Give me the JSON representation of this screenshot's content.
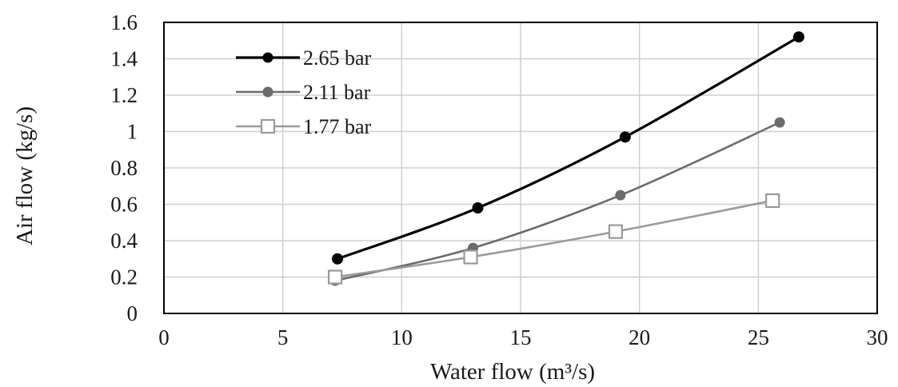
{
  "chart_data": {
    "type": "line",
    "xlabel": "Water flow (m³/s)",
    "ylabel": "Air flow (kg/s)",
    "xlim": [
      0,
      30
    ],
    "ylim": [
      0,
      1.6
    ],
    "x_ticks": [
      0,
      5,
      10,
      15,
      20,
      25,
      30
    ],
    "y_ticks": [
      0,
      0.2,
      0.4,
      0.6,
      0.8,
      1,
      1.2,
      1.4,
      1.6
    ],
    "x_tick_labels": [
      "0",
      "5",
      "10",
      "15",
      "20",
      "25",
      "30"
    ],
    "y_tick_labels": [
      "0",
      "0.2",
      "0.4",
      "0.6",
      "0.8",
      "1",
      "1.2",
      "1.4",
      "1.6"
    ],
    "grid": true,
    "legend_position": "top-left",
    "series": [
      {
        "name": "2.65 bar",
        "color": "#000000",
        "marker": "filled-circle",
        "x": [
          7.3,
          13.2,
          19.4,
          26.7
        ],
        "y": [
          0.3,
          0.58,
          0.97,
          1.52
        ]
      },
      {
        "name": "2.11 bar",
        "color": "#6b6b6b",
        "marker": "filled-circle",
        "x": [
          7.2,
          13.0,
          19.2,
          25.9
        ],
        "y": [
          0.18,
          0.36,
          0.65,
          1.05
        ]
      },
      {
        "name": "1.77 bar",
        "color": "#9a9a9a",
        "marker": "open-square",
        "x": [
          7.2,
          12.9,
          19.0,
          25.6
        ],
        "y": [
          0.2,
          0.31,
          0.45,
          0.62
        ]
      }
    ]
  }
}
